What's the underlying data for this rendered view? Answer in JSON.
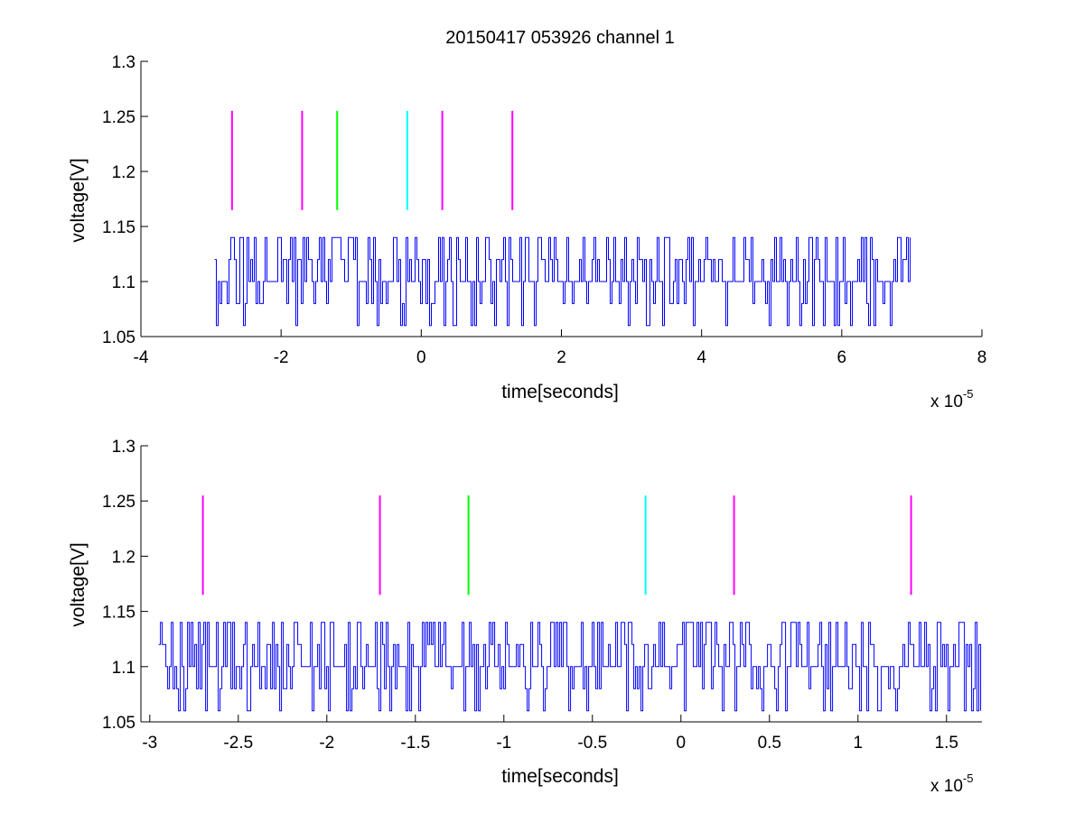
{
  "figure_title": "20150417 053926 channel 1",
  "colors": {
    "trace": "#0000ff",
    "magenta": "#ff00ff",
    "green": "#00ff00",
    "cyan": "#00ffff",
    "axes": "#000000",
    "background": "#ffffff"
  },
  "chart_data": [
    {
      "type": "line",
      "title": "20150417 053926 channel 1",
      "xlabel": "time[seconds]",
      "ylabel": "voltage[V]",
      "x_multiplier_label": "x 10",
      "x_multiplier_exponent": "-5",
      "xlim": [
        -4,
        8
      ],
      "ylim": [
        1.05,
        1.3
      ],
      "xticks": [
        "-4",
        "-2",
        "0",
        "2",
        "4",
        "6",
        "8"
      ],
      "yticks": [
        "1.05",
        "1.1",
        "1.15",
        "1.2",
        "1.25",
        "1.3"
      ],
      "grid": false,
      "trace": {
        "x_start": -2.95,
        "x_end": 7.0,
        "levels": [
          1.06,
          1.08,
          1.1,
          1.12,
          1.14
        ],
        "baseline": 1.1
      },
      "markers": [
        {
          "x": -2.7,
          "y0": 1.165,
          "y1": 1.255,
          "color": "magenta"
        },
        {
          "x": -1.7,
          "y0": 1.165,
          "y1": 1.255,
          "color": "magenta"
        },
        {
          "x": -1.2,
          "y0": 1.165,
          "y1": 1.255,
          "color": "green"
        },
        {
          "x": -0.2,
          "y0": 1.165,
          "y1": 1.255,
          "color": "cyan"
        },
        {
          "x": 0.3,
          "y0": 1.165,
          "y1": 1.255,
          "color": "magenta"
        },
        {
          "x": 1.3,
          "y0": 1.165,
          "y1": 1.255,
          "color": "magenta"
        }
      ]
    },
    {
      "type": "line",
      "xlabel": "time[seconds]",
      "ylabel": "voltage[V]",
      "x_multiplier_label": "x 10",
      "x_multiplier_exponent": "-5",
      "xlim": [
        -3.05,
        1.7
      ],
      "ylim": [
        1.05,
        1.3
      ],
      "xticks": [
        "-3",
        "-2.5",
        "-2",
        "-1.5",
        "-1",
        "-0.5",
        "0",
        "0.5",
        "1",
        "1.5"
      ],
      "yticks": [
        "1.05",
        "1.1",
        "1.15",
        "1.2",
        "1.25",
        "1.3"
      ],
      "grid": false,
      "trace": {
        "x_start": -2.95,
        "x_end": 1.7,
        "levels": [
          1.06,
          1.08,
          1.1,
          1.12,
          1.14
        ],
        "baseline": 1.1
      },
      "markers": [
        {
          "x": -2.7,
          "y0": 1.165,
          "y1": 1.255,
          "color": "magenta"
        },
        {
          "x": -1.7,
          "y0": 1.165,
          "y1": 1.255,
          "color": "magenta"
        },
        {
          "x": -1.2,
          "y0": 1.165,
          "y1": 1.255,
          "color": "green"
        },
        {
          "x": -0.2,
          "y0": 1.165,
          "y1": 1.255,
          "color": "cyan"
        },
        {
          "x": 0.3,
          "y0": 1.165,
          "y1": 1.255,
          "color": "magenta"
        },
        {
          "x": 1.3,
          "y0": 1.165,
          "y1": 1.255,
          "color": "magenta"
        }
      ]
    }
  ]
}
